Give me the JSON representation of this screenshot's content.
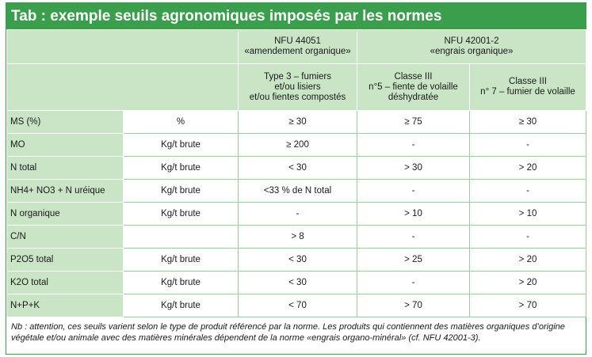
{
  "title": "Tab : exemple seuils agronomiques imposés par les normes",
  "table": {
    "groups": [
      {
        "name": "NFU 44051",
        "subtitle": "«amendement organique»"
      },
      {
        "name": "NFU 42001-2",
        "subtitle": "«engrais organique»"
      }
    ],
    "columns": [
      [
        "Type 3 – fumiers",
        "et/ou lisiers",
        "et/ou fientes compostés"
      ],
      [
        "Classe III",
        "n°5 – fiente de volaille",
        "déshydratée"
      ],
      [
        "Classe III",
        "n° 7 – fumier de volaille"
      ]
    ],
    "rows": [
      [
        "MS (%)",
        "%",
        "≥ 30",
        "≥ 75",
        "≥ 30"
      ],
      [
        "MO",
        "Kg/t brute",
        "≥ 200",
        "-",
        "-"
      ],
      [
        "N total",
        "Kg/t brute",
        "< 30",
        "> 30",
        "> 20"
      ],
      [
        "NH4+ NO3 + N uréique",
        "Kg/t brute",
        "<33 % de N total",
        "-",
        "-"
      ],
      [
        "N organique",
        "Kg/t brute",
        "-",
        "> 10",
        "> 10"
      ],
      [
        "C/N",
        null,
        "> 8",
        "-",
        "-"
      ],
      [
        "P2O5 total",
        "Kg/t brute",
        "< 30",
        "> 25",
        "> 20"
      ],
      [
        "K2O total",
        "Kg/t brute",
        "< 30",
        "-",
        "> 20"
      ],
      [
        "N+P+K",
        "Kg/t brute",
        "< 70",
        "> 70",
        "> 70"
      ]
    ]
  },
  "note": "Nb : attention, ces seuils varient selon le type de produit référencé par la norme. Les produits qui contiennent des matières organiques d’origine végétale et/ou animale avec des matières minérales dépendent de la norme «engrais organo-minéral» (cf. NFU 42001-3)."
}
